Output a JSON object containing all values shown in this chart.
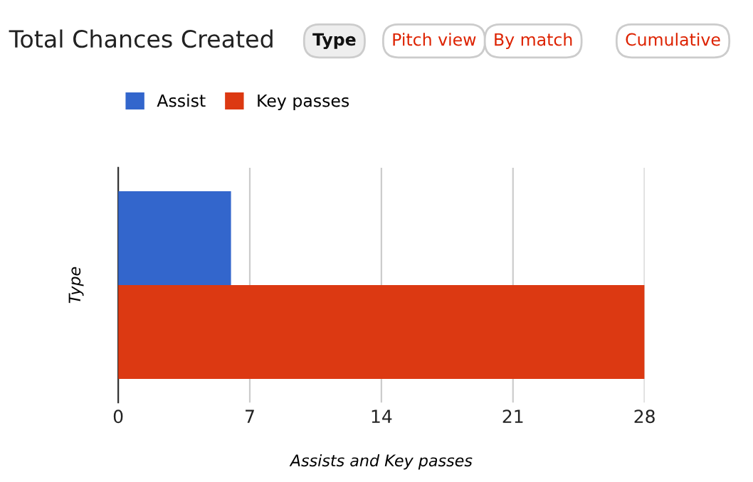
{
  "chart_data": {
    "type": "bar",
    "orientation": "horizontal",
    "title": "Total Chances Created",
    "annotations": [
      "Type",
      "Pitch view",
      "By match",
      "Cumulative"
    ],
    "categories": [
      null
    ],
    "series": [
      {
        "name": "Assist",
        "color": "#3366cc",
        "values": [
          6
        ]
      },
      {
        "name": "Key passes",
        "color": "#dc3912",
        "values": [
          28
        ]
      }
    ],
    "xlim": [
      0,
      28
    ],
    "xticks": [
      0,
      7,
      14,
      21,
      28
    ],
    "xlabel": "Assists and Key passes",
    "ylabel": "Type",
    "grid": "x",
    "legend": "top left"
  }
}
